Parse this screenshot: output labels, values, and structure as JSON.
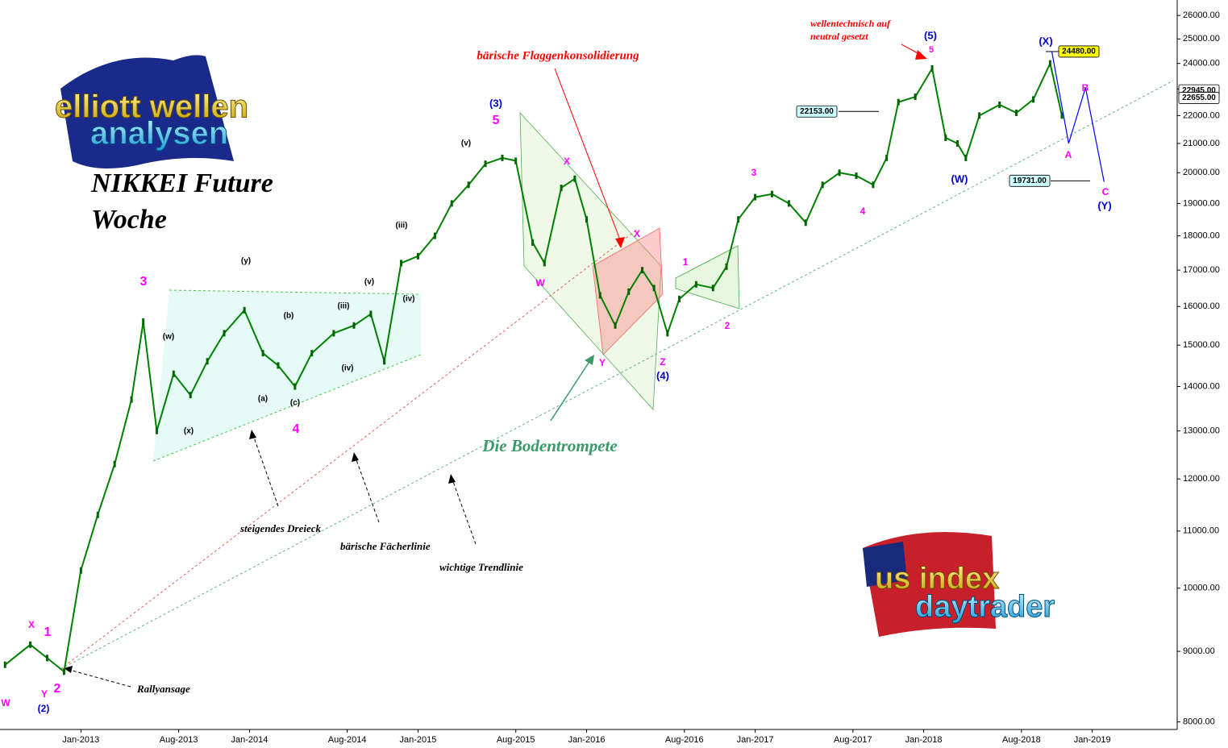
{
  "chart_data": {
    "type": "line",
    "title": "NIKKEI Future",
    "subtitle": "Woche",
    "log_scale": true,
    "grid": false,
    "x": [
      2012.55,
      2012.7,
      2012.8,
      2012.9,
      2013.0,
      2013.1,
      2013.2,
      2013.3,
      2013.37,
      2013.45,
      2013.55,
      2013.65,
      2013.75,
      2013.85,
      2013.97,
      2014.08,
      2014.17,
      2014.27,
      2014.37,
      2014.5,
      2014.62,
      2014.72,
      2014.8,
      2014.9,
      2015.0,
      2015.1,
      2015.2,
      2015.3,
      2015.4,
      2015.5,
      2015.58,
      2015.68,
      2015.75,
      2015.85,
      2015.93,
      2016.0,
      2016.08,
      2016.17,
      2016.25,
      2016.33,
      2016.4,
      2016.48,
      2016.55,
      2016.65,
      2016.75,
      2016.83,
      2016.9,
      2017.0,
      2017.1,
      2017.2,
      2017.3,
      2017.4,
      2017.5,
      2017.6,
      2017.7,
      2017.78,
      2017.85,
      2017.95,
      2018.05,
      2018.13,
      2018.2,
      2018.25,
      2018.33,
      2018.45,
      2018.55,
      2018.65,
      2018.75,
      2018.82
    ],
    "series": [
      {
        "color": "#008000",
        "values": [
          8800,
          9100,
          8900,
          8700,
          10300,
          11300,
          12300,
          13700,
          15600,
          13000,
          14300,
          13800,
          14600,
          15300,
          15900,
          14800,
          14500,
          14000,
          14800,
          15300,
          15500,
          15800,
          14600,
          17200,
          17400,
          18000,
          19000,
          19600,
          20300,
          20500,
          20400,
          17800,
          17200,
          19500,
          19800,
          18500,
          16300,
          15500,
          16400,
          17000,
          16500,
          15300,
          16200,
          16600,
          16500,
          17100,
          18500,
          19200,
          19300,
          19000,
          18400,
          19600,
          20000,
          19900,
          19600,
          20500,
          22500,
          22700,
          23800,
          21200,
          21000,
          20500,
          22000,
          22400,
          22100,
          22600,
          24000,
          22000
        ]
      }
    ],
    "projection": {
      "color": "#0000ff",
      "x": [
        2018.76,
        2018.86,
        2018.96,
        2019.07
      ],
      "values": [
        24480,
        21000,
        23050,
        19700
      ]
    },
    "trendlines": [
      {
        "color": "#60b090",
        "x": [
          2012.88,
          2019.48
        ],
        "values": [
          8737,
          23320
        ]
      },
      {
        "color": "#e06060",
        "x": [
          2012.88,
          2016.3
        ],
        "values": [
          8737,
          18190
        ]
      }
    ],
    "xlim": [
      2012.52,
      2019.48
    ],
    "xticks": [
      {
        "value": 2013.0,
        "label": "Jan-2013"
      },
      {
        "value": 2013.58,
        "label": "Aug-2013"
      },
      {
        "value": 2014.0,
        "label": "Jan-2014"
      },
      {
        "value": 2014.58,
        "label": "Aug-2014"
      },
      {
        "value": 2015.0,
        "label": "Jan-2015"
      },
      {
        "value": 2015.58,
        "label": "Aug-2015"
      },
      {
        "value": 2016.0,
        "label": "Jan-2016"
      },
      {
        "value": 2016.58,
        "label": "Aug-2016"
      },
      {
        "value": 2017.0,
        "label": "Jan-2017"
      },
      {
        "value": 2017.58,
        "label": "Aug-2017"
      },
      {
        "value": 2018.0,
        "label": "Jan-2018"
      },
      {
        "value": 2018.58,
        "label": "Aug-2018"
      },
      {
        "value": 2019.0,
        "label": "Jan-2019"
      }
    ],
    "ylim": [
      7900,
      26500
    ],
    "yticks": [
      {
        "value": 8000,
        "label": "8000.00"
      },
      {
        "value": 9000,
        "label": "9000.00"
      },
      {
        "value": 10000,
        "label": "10000.00"
      },
      {
        "value": 11000,
        "label": "11000.00"
      },
      {
        "value": 12000,
        "label": "12000.00"
      },
      {
        "value": 13000,
        "label": "13000.00"
      },
      {
        "value": 14000,
        "label": "14000.00"
      },
      {
        "value": 15000,
        "label": "15000.00"
      },
      {
        "value": 16000,
        "label": "16000.00"
      },
      {
        "value": 17000,
        "label": "17000.00"
      },
      {
        "value": 18000,
        "label": "18000.00"
      },
      {
        "value": 19000,
        "label": "19000.00"
      },
      {
        "value": 20000,
        "label": "20000.00"
      },
      {
        "value": 21000,
        "label": "21000.00"
      },
      {
        "value": 22000,
        "label": "22000.00"
      },
      {
        "value": 23000,
        "label": "23000.00"
      },
      {
        "value": 24000,
        "label": "24000.00"
      },
      {
        "value": 25000,
        "label": "25000.00"
      },
      {
        "value": 26000,
        "label": "26000.00"
      }
    ],
    "price_tags": [
      {
        "value": 24480,
        "label": "24480.00",
        "color": "#ffff00"
      },
      {
        "value": 22153,
        "label": "22153.00",
        "color": "#ccffff"
      },
      {
        "value": 19731,
        "label": "19731.00",
        "color": "#ccffff"
      },
      {
        "value": 22945,
        "label": "22945.00",
        "color": "#ffffff"
      },
      {
        "value": 22655,
        "label": "22655.00",
        "color": "#ffffff"
      }
    ],
    "wave_labels": [
      {
        "text": "W",
        "color": "#ff00ff"
      },
      {
        "text": "Y",
        "color": "#ff00ff"
      },
      {
        "text": "X",
        "color": "#ff00ff"
      },
      {
        "text": "1",
        "color": "#ff00ff"
      },
      {
        "text": "2",
        "color": "#ff00ff"
      },
      {
        "text": "(2)",
        "color": "#0000cc"
      },
      {
        "text": "3",
        "color": "#ff00ff"
      },
      {
        "text": "(w)",
        "color": "#000000"
      },
      {
        "text": "(x)",
        "color": "#000000"
      },
      {
        "text": "4",
        "color": "#ff00ff"
      },
      {
        "text": "(y)",
        "color": "#000000"
      },
      {
        "text": "(a)",
        "color": "#000000"
      },
      {
        "text": "(b)",
        "color": "#000000"
      },
      {
        "text": "(c)",
        "color": "#000000"
      },
      {
        "text": "(iii)",
        "color": "#000000"
      },
      {
        "text": "(iv)",
        "color": "#000000"
      },
      {
        "text": "(v)",
        "color": "#000000"
      },
      {
        "text": "(iii)",
        "color": "#000000"
      },
      {
        "text": "(iv)",
        "color": "#000000"
      },
      {
        "text": "(3)",
        "color": "#0000cc"
      },
      {
        "text": "5",
        "color": "#ff00ff"
      },
      {
        "text": "(v)",
        "color": "#000000"
      },
      {
        "text": "W",
        "color": "#ff00ff"
      },
      {
        "text": "X",
        "color": "#ff00ff"
      },
      {
        "text": "Y",
        "color": "#ff00ff"
      },
      {
        "text": "X",
        "color": "#ff00ff"
      },
      {
        "text": "Z",
        "color": "#ff00ff"
      },
      {
        "text": "(4)",
        "color": "#0000cc"
      },
      {
        "text": "1",
        "color": "#ff00ff"
      },
      {
        "text": "2",
        "color": "#ff00ff"
      },
      {
        "text": "3",
        "color": "#ff00ff"
      },
      {
        "text": "4",
        "color": "#ff00ff"
      },
      {
        "text": "5",
        "color": "#ff00ff"
      },
      {
        "text": "(5)",
        "color": "#0000cc"
      },
      {
        "text": "(W)",
        "color": "#0000cc"
      },
      {
        "text": "(X)",
        "color": "#0000cc"
      },
      {
        "text": "A",
        "color": "#ff00ff"
      },
      {
        "text": "B",
        "color": "#ff00ff"
      },
      {
        "text": "C",
        "color": "#ff00ff"
      },
      {
        "text": "(Y)",
        "color": "#0000cc"
      }
    ],
    "notes": [
      "bärische Flaggenkonsolidierung",
      "wellentechnisch auf",
      "neutral gesetzt",
      "Die Bodentrompete",
      "steigendes Dreieck",
      "bärische Fächerlinie",
      "wichtige Trendlinie",
      "Rallyansage"
    ],
    "logos": [
      "elliott wellen",
      "analysen",
      "us index",
      "daytrader"
    ]
  }
}
